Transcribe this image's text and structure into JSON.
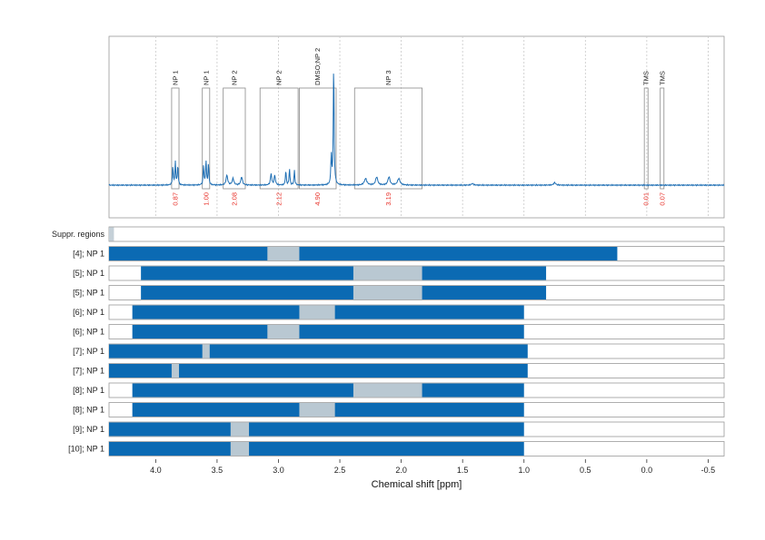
{
  "colors": {
    "spectrum": "#1f6fb4",
    "bar_fill": "#0b6ab3",
    "gap_fill": "#b9c8d2",
    "suppr_fill": "#c5d0d8",
    "integral_text": "#e8322a",
    "frame": "#9a9a9a",
    "grid": "#c8c8c8"
  },
  "chart_data": {
    "type": "nmr-spectrum-with-range-bars",
    "xlabel": "Chemical shift [ppm]",
    "x_reversed": true,
    "xlim": [
      4.38,
      -0.63
    ],
    "x_ticks": [
      4.0,
      3.5,
      3.0,
      2.5,
      2.0,
      1.5,
      1.0,
      0.5,
      0.0,
      -0.5
    ],
    "x_tick_labels": [
      "4.0",
      "3.5",
      "3.0",
      "2.5",
      "2.0",
      "1.5",
      "1.0",
      "0.5",
      "0.0",
      "-0.5"
    ],
    "spectrum": {
      "baseline": 0.0,
      "peaks": [
        {
          "ppm": 3.86,
          "height": 0.11,
          "width": 0.004
        },
        {
          "ppm": 3.84,
          "height": 0.14,
          "width": 0.004
        },
        {
          "ppm": 3.82,
          "height": 0.12,
          "width": 0.004
        },
        {
          "ppm": 3.61,
          "height": 0.12,
          "width": 0.004
        },
        {
          "ppm": 3.59,
          "height": 0.15,
          "width": 0.004
        },
        {
          "ppm": 3.57,
          "height": 0.13,
          "width": 0.004
        },
        {
          "ppm": 3.42,
          "height": 0.06,
          "width": 0.008
        },
        {
          "ppm": 3.37,
          "height": 0.04,
          "width": 0.008
        },
        {
          "ppm": 3.3,
          "height": 0.05,
          "width": 0.008
        },
        {
          "ppm": 3.06,
          "height": 0.07,
          "width": 0.006
        },
        {
          "ppm": 3.03,
          "height": 0.06,
          "width": 0.006
        },
        {
          "ppm": 2.94,
          "height": 0.09,
          "width": 0.004
        },
        {
          "ppm": 2.91,
          "height": 0.1,
          "width": 0.004
        },
        {
          "ppm": 2.87,
          "height": 0.09,
          "width": 0.004
        },
        {
          "ppm": 2.55,
          "height": 0.75,
          "width": 0.004
        },
        {
          "ppm": 2.57,
          "height": 0.18,
          "width": 0.004
        },
        {
          "ppm": 2.29,
          "height": 0.04,
          "width": 0.012
        },
        {
          "ppm": 2.2,
          "height": 0.05,
          "width": 0.01
        },
        {
          "ppm": 2.1,
          "height": 0.05,
          "width": 0.01
        },
        {
          "ppm": 2.02,
          "height": 0.04,
          "width": 0.012
        },
        {
          "ppm": 1.42,
          "height": 0.01,
          "width": 0.01
        },
        {
          "ppm": 0.75,
          "height": 0.015,
          "width": 0.01
        }
      ]
    },
    "peak_regions": [
      {
        "label": "NP 1",
        "start": 3.87,
        "end": 3.81,
        "integral": "0.87"
      },
      {
        "label": "NP 1",
        "start": 3.62,
        "end": 3.56,
        "integral": "1.00"
      },
      {
        "label": "NP 2",
        "start": 3.45,
        "end": 3.27,
        "integral": "2.08"
      },
      {
        "label": "NP 2",
        "start": 3.15,
        "end": 2.84,
        "integral": "2.12"
      },
      {
        "label": "DMSO;NP 2",
        "start": 2.83,
        "end": 2.53,
        "integral": "4.90"
      },
      {
        "label": "NP 3",
        "start": 2.38,
        "end": 1.83,
        "integral": "3.19"
      },
      {
        "label": "TMS",
        "start": 0.02,
        "end": -0.01,
        "integral": "0.01"
      },
      {
        "label": "TMS",
        "start": -0.11,
        "end": -0.14,
        "integral": "0.07"
      }
    ],
    "rows": [
      {
        "label": "Suppr. regions",
        "kind": "suppr",
        "segments": [
          [
            4.38,
            4.34
          ]
        ]
      },
      {
        "label": "[4]; NP 1",
        "kind": "bar",
        "start": 4.38,
        "end": 0.24,
        "gaps": [
          [
            3.09,
            2.83
          ]
        ]
      },
      {
        "label": "[5]; NP 1",
        "kind": "bar",
        "start": 4.12,
        "end": 0.82,
        "gaps": [
          [
            2.39,
            1.83
          ]
        ]
      },
      {
        "label": "[5]; NP 1",
        "kind": "bar",
        "start": 4.12,
        "end": 0.82,
        "gaps": [
          [
            2.39,
            1.83
          ]
        ]
      },
      {
        "label": "[6]; NP 1",
        "kind": "bar",
        "start": 4.19,
        "end": 1.0,
        "gaps": [
          [
            2.83,
            2.54
          ]
        ]
      },
      {
        "label": "[6]; NP 1",
        "kind": "bar",
        "start": 4.19,
        "end": 1.0,
        "gaps": [
          [
            3.09,
            2.83
          ]
        ]
      },
      {
        "label": "[7]; NP 1",
        "kind": "bar",
        "start": 4.38,
        "end": 0.97,
        "gaps": [
          [
            3.62,
            3.56
          ]
        ]
      },
      {
        "label": "[7]; NP 1",
        "kind": "bar",
        "start": 4.38,
        "end": 0.97,
        "gaps": [
          [
            3.87,
            3.81
          ]
        ]
      },
      {
        "label": "[8]; NP 1",
        "kind": "bar",
        "start": 4.19,
        "end": 1.0,
        "gaps": [
          [
            2.39,
            1.83
          ]
        ]
      },
      {
        "label": "[8]; NP 1",
        "kind": "bar",
        "start": 4.19,
        "end": 1.0,
        "gaps": [
          [
            2.83,
            2.54
          ]
        ]
      },
      {
        "label": "[9]; NP 1",
        "kind": "bar",
        "start": 4.38,
        "end": 1.0,
        "gaps": [
          [
            3.39,
            3.24
          ]
        ]
      },
      {
        "label": "[10]; NP 1",
        "kind": "bar",
        "start": 4.38,
        "end": 1.0,
        "gaps": [
          [
            3.39,
            3.24
          ]
        ]
      }
    ]
  }
}
